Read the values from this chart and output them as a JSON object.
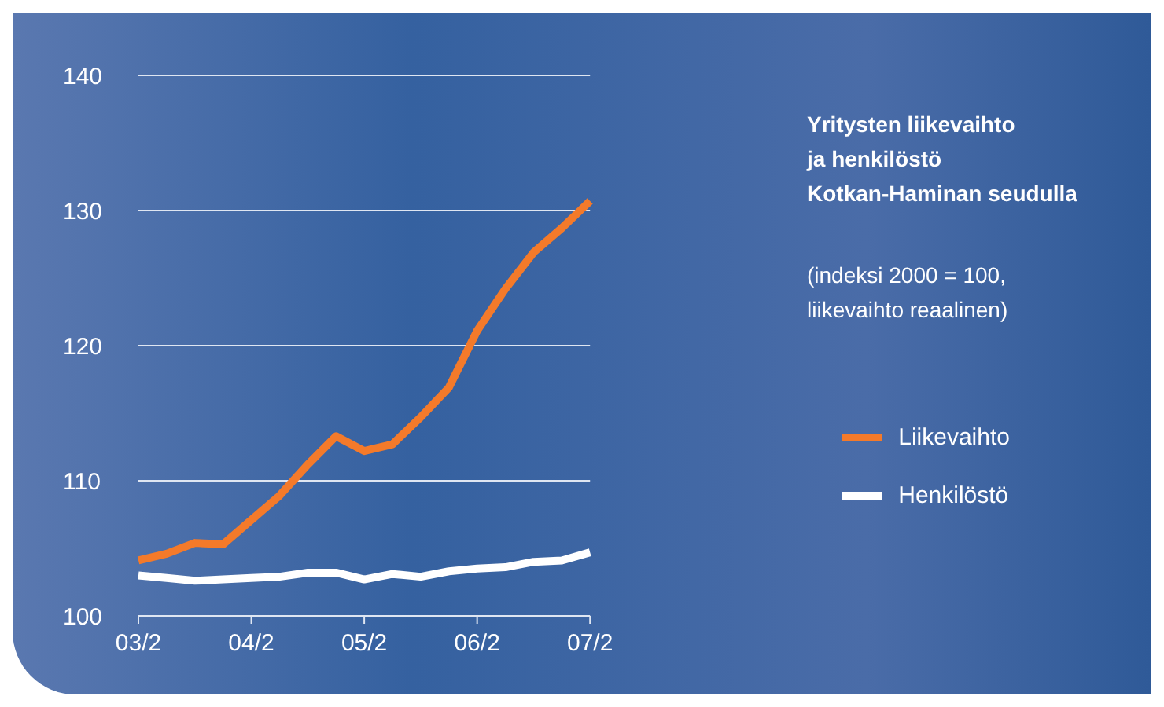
{
  "chart_data": {
    "type": "line",
    "title": "Yritysten liikevaihto\nja henkilöstö\nKotkan-Haminan seudulla",
    "subtitle": "(indeksi 2000 = 100,\nliikevaihto reaalinen)",
    "categories": [
      "03/2",
      null,
      null,
      null,
      "04/2",
      null,
      null,
      null,
      "05/2",
      null,
      null,
      null,
      "06/2",
      null,
      null,
      null,
      "07/2"
    ],
    "series": [
      {
        "name": "Liikevaihto",
        "color": "#f47a2a",
        "values": [
          104.1,
          104.6,
          105.4,
          105.3,
          107.1,
          108.9,
          111.2,
          113.3,
          112.2,
          112.7,
          114.7,
          116.9,
          121.1,
          124.2,
          126.9,
          128.7,
          130.7
        ]
      },
      {
        "name": "Henkilöstö",
        "color": "#ffffff",
        "values": [
          103.0,
          102.8,
          102.6,
          102.7,
          102.8,
          102.9,
          103.2,
          103.2,
          102.7,
          103.1,
          102.9,
          103.3,
          103.5,
          103.6,
          104.0,
          104.1,
          104.7
        ]
      }
    ],
    "ylim": [
      100,
      140
    ],
    "yticks": [
      100,
      110,
      120,
      130,
      140
    ],
    "grid": "y",
    "legend": "right",
    "marker": "none",
    "line_style": "solid"
  }
}
